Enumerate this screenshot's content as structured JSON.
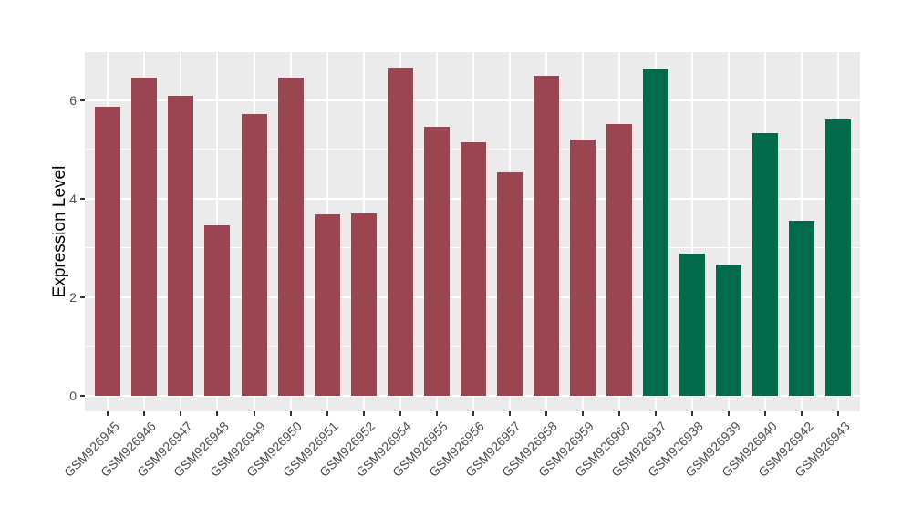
{
  "figure": {
    "background": "#FFFFFF",
    "panel_background": "#EBEBEB",
    "gridline_color": "#FFFFFF",
    "tick_mark_color": "#333333",
    "tick_text_color": "#4D4D4D",
    "axis_title_color": "#000000"
  },
  "chart_data": {
    "type": "bar",
    "title": "",
    "xlabel": "",
    "ylabel": "Expression Level",
    "grid": "on",
    "legend": "none",
    "x_label_rotation_deg": 45,
    "categories": [
      "GSM926945",
      "GSM926946",
      "GSM926947",
      "GSM926948",
      "GSM926949",
      "GSM926950",
      "GSM926951",
      "GSM926952",
      "GSM926954",
      "GSM926955",
      "GSM926956",
      "GSM926957",
      "GSM926958",
      "GSM926959",
      "GSM926960",
      "GSM926937",
      "GSM926938",
      "GSM926939",
      "GSM926940",
      "GSM926942",
      "GSM926943"
    ],
    "values": [
      5.87,
      6.46,
      6.1,
      3.47,
      5.72,
      6.47,
      3.68,
      3.71,
      6.65,
      5.46,
      5.15,
      4.54,
      6.49,
      5.2,
      5.51,
      6.63,
      2.89,
      2.67,
      5.33,
      3.56,
      5.61
    ],
    "bar_groups": [
      "group1",
      "group1",
      "group1",
      "group1",
      "group1",
      "group1",
      "group1",
      "group1",
      "group1",
      "group1",
      "group1",
      "group1",
      "group1",
      "group1",
      "group1",
      "group2",
      "group2",
      "group2",
      "group2",
      "group2",
      "group2"
    ],
    "group_colors": {
      "group1": "#9B4452",
      "group2": "#006A4B"
    },
    "ylim": [
      -0.315,
      6.98
    ],
    "yticks": [
      0,
      2,
      4,
      6
    ],
    "yticks_minor": [
      1,
      3,
      5
    ]
  }
}
